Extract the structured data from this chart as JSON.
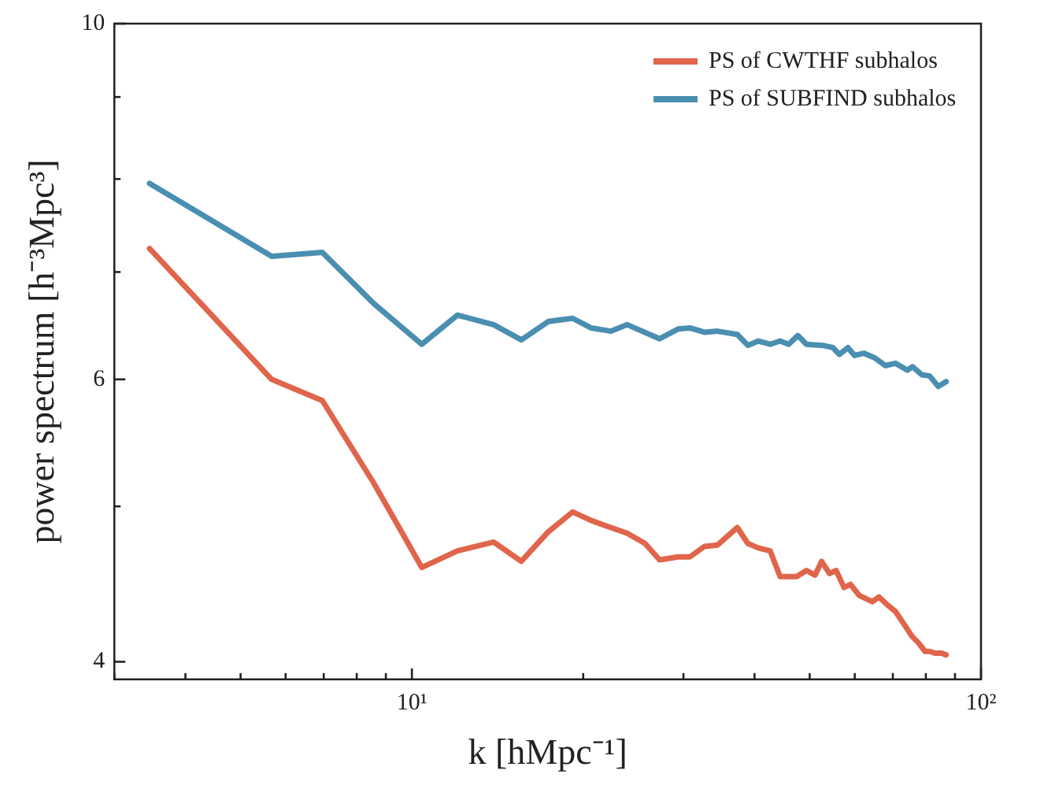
{
  "chart_data": {
    "type": "line",
    "xlabel": "k [hMpc⁻¹]",
    "ylabel": "power spectrum [h⁻³Mpc³]",
    "log": "xy",
    "xlim": [
      3.0,
      100
    ],
    "ylim": [
      3.91,
      10
    ],
    "xticks": [
      {
        "value": 3,
        "label": null
      },
      {
        "value": 4,
        "label": null
      },
      {
        "value": 5,
        "label": null
      },
      {
        "value": 6,
        "label": null
      },
      {
        "value": 7,
        "label": null
      },
      {
        "value": 8,
        "label": null
      },
      {
        "value": 9,
        "label": null
      },
      {
        "value": 10,
        "label": "10¹"
      },
      {
        "value": 20,
        "label": null
      },
      {
        "value": 30,
        "label": null
      },
      {
        "value": 40,
        "label": null
      },
      {
        "value": 50,
        "label": null
      },
      {
        "value": 60,
        "label": null
      },
      {
        "value": 70,
        "label": null
      },
      {
        "value": 80,
        "label": null
      },
      {
        "value": 90,
        "label": null
      },
      {
        "value": 100,
        "label": "10²"
      }
    ],
    "yticks": [
      4,
      {
        "value": 5,
        "label": null
      },
      6,
      {
        "value": 7,
        "label": null
      },
      {
        "value": 8,
        "label": null
      },
      {
        "value": 9,
        "label": null
      },
      10
    ],
    "grid": false,
    "legend": "top right",
    "marker": "none",
    "line_style": "solid",
    "series": [
      {
        "name": "PS of CWTHF subhalos",
        "color": "#e0654b",
        "x": [
          3.46,
          5.67,
          6.96,
          8.57,
          10.41,
          12.02,
          13.92,
          15.57,
          17.36,
          19.16,
          20.64,
          22.37,
          23.9,
          25.69,
          27.24,
          29.35,
          30.79,
          32.65,
          34.44,
          37.31,
          38.94,
          40.63,
          42.62,
          44.36,
          47.41,
          49.35,
          51.09,
          52.47,
          54.18,
          55.64,
          57.45,
          58.99,
          61.08,
          64.42,
          66.16,
          68.49,
          70.72,
          73.62,
          75.6,
          77.63,
          79.73,
          81.23,
          82.99,
          85.23,
          86.84
        ],
        "values": [
          7.24,
          6.0,
          5.82,
          5.17,
          4.58,
          4.69,
          4.75,
          4.62,
          4.82,
          4.96,
          4.9,
          4.85,
          4.81,
          4.74,
          4.63,
          4.65,
          4.65,
          4.72,
          4.73,
          4.85,
          4.74,
          4.71,
          4.69,
          4.52,
          4.52,
          4.56,
          4.53,
          4.62,
          4.54,
          4.56,
          4.45,
          4.47,
          4.4,
          4.36,
          4.39,
          4.34,
          4.3,
          4.21,
          4.15,
          4.11,
          4.06,
          4.06,
          4.05,
          4.05,
          4.04
        ]
      },
      {
        "name": "PS of SUBFIND subhalos",
        "color": "#4a8fb1",
        "x": [
          3.46,
          5.67,
          6.96,
          8.57,
          10.41,
          12.02,
          13.92,
          15.57,
          17.36,
          19.16,
          20.64,
          22.37,
          23.9,
          27.24,
          29.35,
          30.79,
          32.65,
          34.44,
          37.31,
          38.94,
          40.63,
          42.62,
          44.36,
          45.92,
          47.66,
          49.35,
          52.75,
          54.91,
          56.39,
          58.37,
          59.95,
          62.23,
          64.94,
          67.95,
          70.72,
          74.21,
          75.8,
          78.68,
          81.23,
          84.1,
          86.84
        ],
        "values": [
          7.95,
          7.16,
          7.2,
          6.69,
          6.31,
          6.58,
          6.49,
          6.35,
          6.52,
          6.55,
          6.46,
          6.43,
          6.49,
          6.36,
          6.45,
          6.46,
          6.42,
          6.43,
          6.4,
          6.3,
          6.34,
          6.31,
          6.34,
          6.31,
          6.39,
          6.31,
          6.3,
          6.28,
          6.22,
          6.28,
          6.21,
          6.23,
          6.19,
          6.12,
          6.14,
          6.08,
          6.11,
          6.04,
          6.03,
          5.94,
          5.98
        ]
      }
    ]
  }
}
